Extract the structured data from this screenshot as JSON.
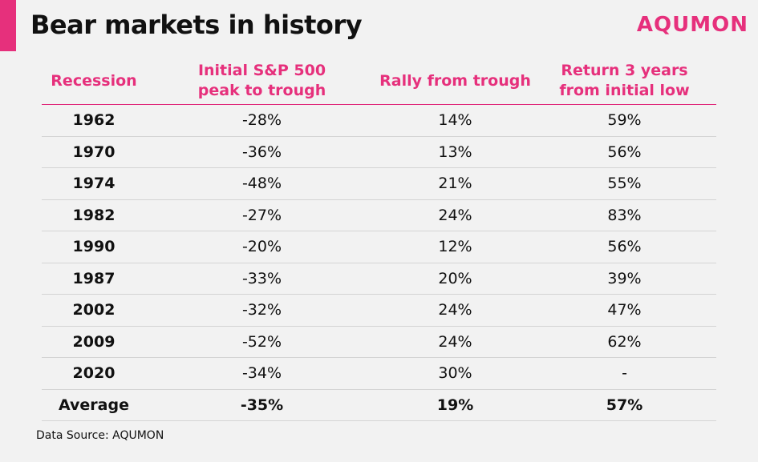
{
  "title": "Bear markets in history",
  "brand": "AQUMON",
  "colors": {
    "accent": "#e6307c",
    "header_text": "#e6307c",
    "background": "#f2f2f2"
  },
  "chart_data": {
    "type": "table",
    "columns": [
      "Recession",
      "Initial S&P 500\npeak to trough",
      "Rally from trough",
      "Return 3 years\nfrom initial low"
    ],
    "rows": [
      [
        "1962",
        "-28%",
        "14%",
        "59%"
      ],
      [
        "1970",
        "-36%",
        "13%",
        "56%"
      ],
      [
        "1974",
        "-48%",
        "21%",
        "55%"
      ],
      [
        "1982",
        "-27%",
        "24%",
        "83%"
      ],
      [
        "1990",
        "-20%",
        "12%",
        "56%"
      ],
      [
        "1987",
        "-33%",
        "20%",
        "39%"
      ],
      [
        "2002",
        "-32%",
        "24%",
        "47%"
      ],
      [
        "2009",
        "-52%",
        "24%",
        "62%"
      ],
      [
        "2020",
        "-34%",
        "30%",
        "-"
      ]
    ],
    "summary_row": [
      "Average",
      "-35%",
      "19%",
      "57%"
    ]
  },
  "source": "Data Source: AQUMON"
}
